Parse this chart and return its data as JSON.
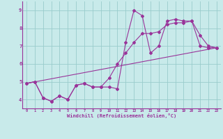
{
  "xlabel": "Windchill (Refroidissement éolien,°C)",
  "background_color": "#c8eaea",
  "line_color": "#993399",
  "grid_color": "#99cccc",
  "xlim": [
    -0.5,
    23.5
  ],
  "ylim": [
    3.5,
    9.5
  ],
  "yticks": [
    4,
    5,
    6,
    7,
    8,
    9
  ],
  "xticks": [
    0,
    1,
    2,
    3,
    4,
    5,
    6,
    7,
    8,
    9,
    10,
    11,
    12,
    13,
    14,
    15,
    16,
    17,
    18,
    19,
    20,
    21,
    22,
    23
  ],
  "series1_x": [
    0,
    1,
    2,
    3,
    4,
    5,
    6,
    7,
    8,
    9,
    10,
    11,
    12,
    13,
    14,
    15,
    16,
    17,
    18,
    19,
    20,
    21,
    22,
    23
  ],
  "series1_y": [
    4.9,
    5.0,
    4.1,
    3.9,
    4.2,
    4.0,
    4.8,
    4.9,
    4.7,
    4.7,
    4.7,
    4.6,
    7.2,
    9.0,
    8.7,
    6.6,
    7.0,
    8.4,
    8.5,
    8.4,
    8.4,
    7.0,
    6.9,
    6.9
  ],
  "series2_x": [
    0,
    1,
    2,
    3,
    4,
    5,
    6,
    7,
    8,
    9,
    10,
    11,
    12,
    13,
    14,
    15,
    16,
    17,
    18,
    19,
    20,
    21,
    22,
    23
  ],
  "series2_y": [
    4.9,
    5.0,
    4.1,
    3.9,
    4.2,
    4.0,
    4.8,
    4.9,
    4.7,
    4.7,
    5.2,
    6.0,
    6.6,
    7.2,
    7.7,
    7.7,
    7.8,
    8.2,
    8.3,
    8.3,
    8.4,
    7.6,
    7.0,
    6.9
  ],
  "series3_x": [
    0,
    23
  ],
  "series3_y": [
    4.9,
    6.9
  ]
}
